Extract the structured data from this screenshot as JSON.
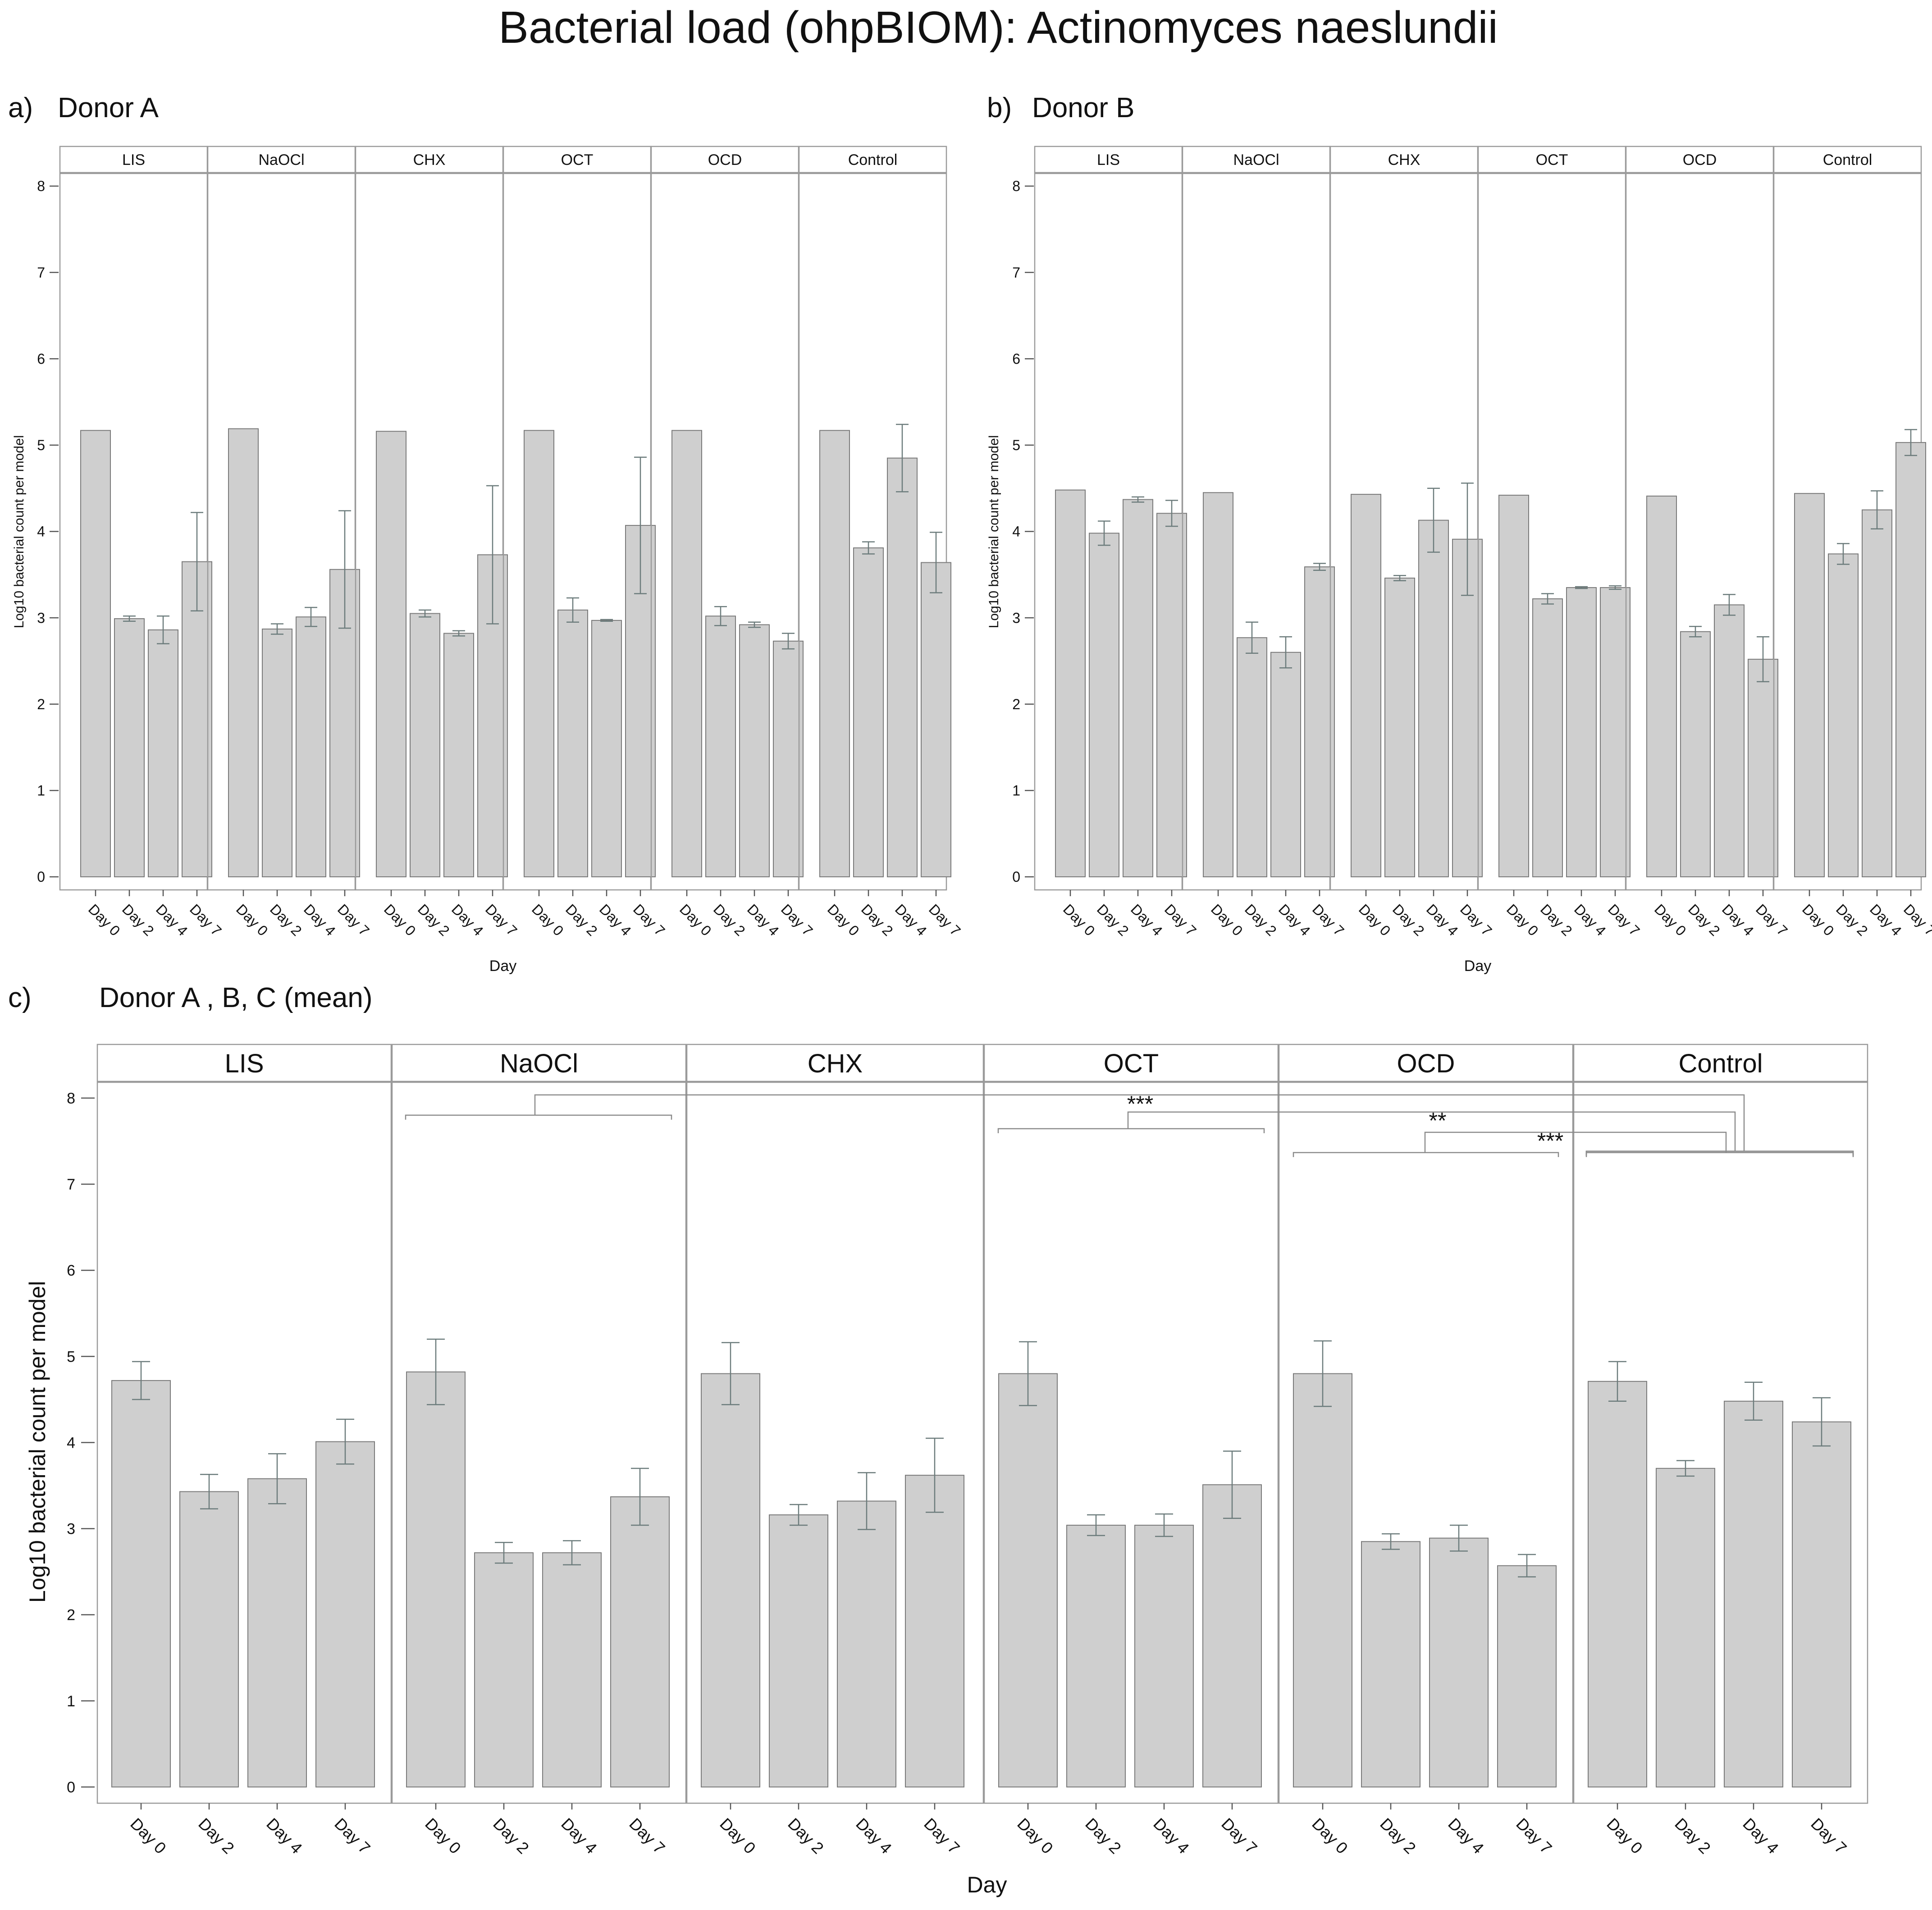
{
  "title": "Bacterial load (ohpBIOM): Actinomyces naeslundii",
  "chart_data": [
    {
      "id": "a",
      "type": "bar",
      "panel_label": "a)",
      "subtitle": "Donor A",
      "xlabel": "Day",
      "ylabel": "Log10 bacterial count per model",
      "ylim": [
        0,
        8.2
      ],
      "yticks": [
        "0",
        "1",
        "2",
        "3",
        "4",
        "5",
        "6",
        "7",
        "8"
      ],
      "categories": [
        "Day 0",
        "Day 2",
        "Day 4",
        "Day 7"
      ],
      "facets": [
        {
          "name": "LIS",
          "values": [
            5.17,
            2.99,
            2.86,
            3.65
          ],
          "errors": [
            null,
            0.03,
            0.16,
            0.57
          ]
        },
        {
          "name": "NaOCl",
          "values": [
            5.19,
            2.87,
            3.01,
            3.56
          ],
          "errors": [
            null,
            0.06,
            0.11,
            0.68
          ]
        },
        {
          "name": "CHX",
          "values": [
            5.16,
            3.05,
            2.82,
            3.73
          ],
          "errors": [
            null,
            0.04,
            0.03,
            0.8
          ]
        },
        {
          "name": "OCT",
          "values": [
            5.17,
            3.09,
            2.97,
            4.07
          ],
          "errors": [
            null,
            0.14,
            0.01,
            0.79
          ]
        },
        {
          "name": "OCD",
          "values": [
            5.17,
            3.02,
            2.92,
            2.73
          ],
          "errors": [
            null,
            0.11,
            0.03,
            0.09
          ]
        },
        {
          "name": "Control",
          "values": [
            5.17,
            3.81,
            4.85,
            3.64
          ],
          "errors": [
            null,
            0.07,
            0.39,
            0.35
          ]
        }
      ]
    },
    {
      "id": "b",
      "type": "bar",
      "panel_label": "b)",
      "subtitle": "Donor B",
      "xlabel": "Day",
      "ylabel": "Log10 bacterial count per model",
      "ylim": [
        0,
        8.2
      ],
      "yticks": [
        "0",
        "1",
        "2",
        "3",
        "4",
        "5",
        "6",
        "7",
        "8"
      ],
      "categories": [
        "Day 0",
        "Day 2",
        "Day 4",
        "Day 7"
      ],
      "facets": [
        {
          "name": "LIS",
          "values": [
            4.48,
            3.98,
            4.37,
            4.21
          ],
          "errors": [
            null,
            0.14,
            0.03,
            0.15
          ]
        },
        {
          "name": "NaOCl",
          "values": [
            4.45,
            2.77,
            2.6,
            3.59
          ],
          "errors": [
            null,
            0.18,
            0.18,
            0.04
          ]
        },
        {
          "name": "CHX",
          "values": [
            4.43,
            3.46,
            4.13,
            3.91
          ],
          "errors": [
            null,
            0.03,
            0.37,
            0.65
          ]
        },
        {
          "name": "OCT",
          "values": [
            4.42,
            3.22,
            3.35,
            3.35
          ],
          "errors": [
            null,
            0.06,
            0.01,
            0.02
          ]
        },
        {
          "name": "OCD",
          "values": [
            4.41,
            2.84,
            3.15,
            2.52
          ],
          "errors": [
            null,
            0.06,
            0.12,
            0.26
          ]
        },
        {
          "name": "Control",
          "values": [
            4.44,
            3.74,
            4.25,
            5.03
          ],
          "errors": [
            null,
            0.12,
            0.22,
            0.15
          ]
        }
      ]
    },
    {
      "id": "c",
      "type": "bar",
      "panel_label": "c)",
      "subtitle": "Donor A , B, C (mean)",
      "xlabel": "Day",
      "ylabel": "Log10 bacterial count per model",
      "ylim": [
        0,
        8.2
      ],
      "yticks": [
        "0",
        "1",
        "2",
        "3",
        "4",
        "5",
        "6",
        "7",
        "8"
      ],
      "categories": [
        "Day 0",
        "Day 2",
        "Day 4",
        "Day 7"
      ],
      "facets": [
        {
          "name": "LIS",
          "values": [
            4.72,
            3.43,
            3.58,
            4.01
          ],
          "errors": [
            0.22,
            0.2,
            0.29,
            0.26
          ]
        },
        {
          "name": "NaOCl",
          "values": [
            4.82,
            2.72,
            2.72,
            3.37
          ],
          "errors": [
            0.38,
            0.12,
            0.14,
            0.33
          ]
        },
        {
          "name": "CHX",
          "values": [
            4.8,
            3.16,
            3.32,
            3.62
          ],
          "errors": [
            0.36,
            0.12,
            0.33,
            0.43
          ]
        },
        {
          "name": "OCT",
          "values": [
            4.8,
            3.04,
            3.04,
            3.51
          ],
          "errors": [
            0.37,
            0.12,
            0.13,
            0.39
          ]
        },
        {
          "name": "OCD",
          "values": [
            4.8,
            2.85,
            2.89,
            2.57
          ],
          "errors": [
            0.38,
            0.09,
            0.15,
            0.13
          ]
        },
        {
          "name": "Control",
          "values": [
            4.71,
            3.7,
            4.48,
            4.24
          ],
          "errors": [
            0.23,
            0.09,
            0.22,
            0.28
          ]
        }
      ],
      "annotations": [
        {
          "groups": [
            "NaOCl",
            "Control"
          ],
          "label": "***"
        },
        {
          "groups": [
            "OCT",
            "Control"
          ],
          "label": "**"
        },
        {
          "groups": [
            "OCD",
            "Control"
          ],
          "label": "***"
        }
      ]
    }
  ]
}
